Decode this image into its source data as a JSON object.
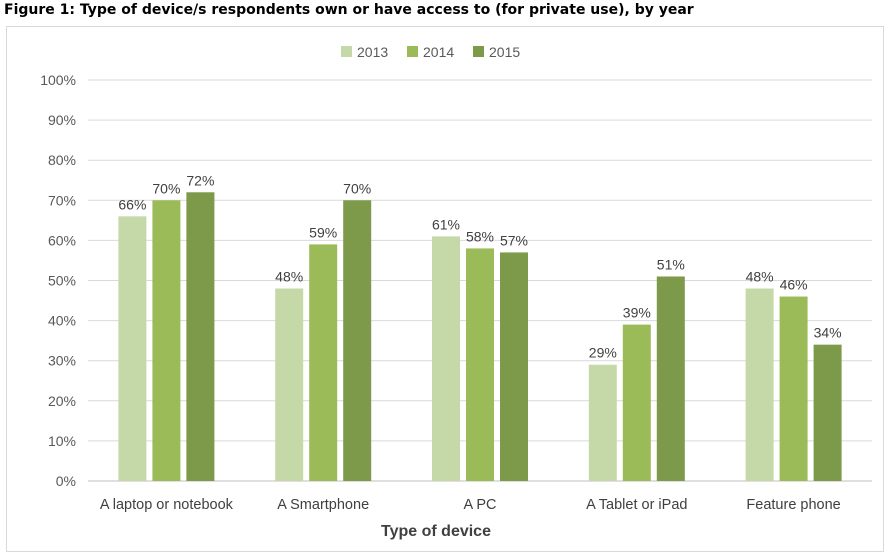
{
  "chart_data": {
    "type": "bar",
    "title": "Figure 1: Type of device/s respondents own or have access to (for private use), by year",
    "xlabel": "Type of device",
    "ylabel": "",
    "categories": [
      "A laptop or notebook",
      "A Smartphone",
      "A PC",
      "A Tablet or iPad",
      "Feature phone"
    ],
    "series": [
      {
        "name": "2013",
        "color": "#c5d9a8",
        "values": [
          66,
          48,
          61,
          29,
          48
        ]
      },
      {
        "name": "2014",
        "color": "#9bbb59",
        "values": [
          70,
          59,
          58,
          39,
          46
        ]
      },
      {
        "name": "2015",
        "color": "#7c9a4a",
        "values": [
          72,
          70,
          57,
          51,
          34
        ]
      }
    ],
    "ylim": [
      0,
      100
    ],
    "yticks": [
      "0%",
      "10%",
      "20%",
      "30%",
      "40%",
      "50%",
      "60%",
      "70%",
      "80%",
      "90%",
      "100%"
    ],
    "value_suffix": "%",
    "grid": true,
    "legend_position": "top-center"
  }
}
